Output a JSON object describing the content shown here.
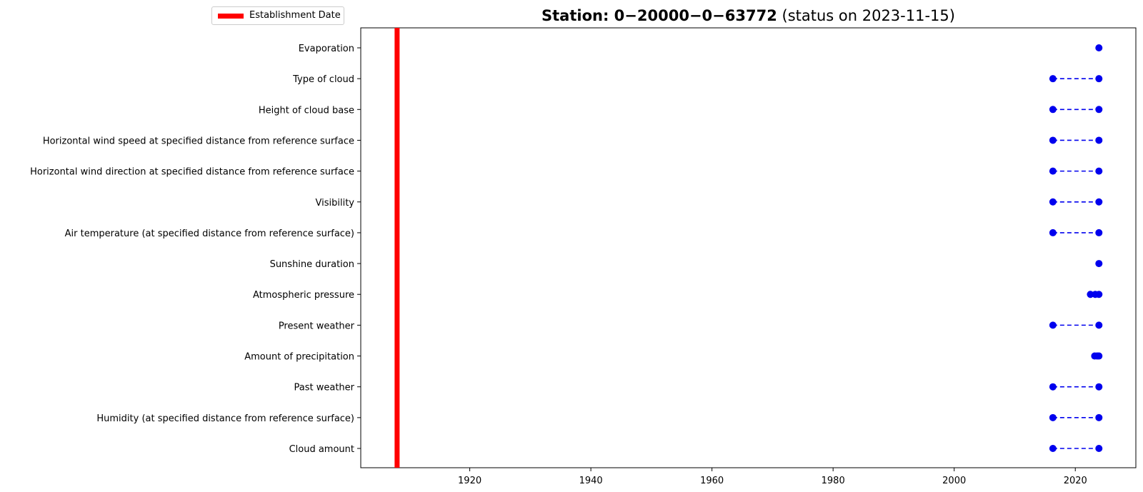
{
  "legend": {
    "label": "Establishment Date",
    "color": "#ff0000"
  },
  "chart_data": {
    "type": "scatter",
    "title": "Station: 0−20000−0−63772",
    "subtitle": "(status on 2023-11-15)",
    "xlabel": "",
    "ylabel": "",
    "xlim": [
      1902,
      2030
    ],
    "xticks": [
      1920,
      1940,
      1960,
      1980,
      2000,
      2020
    ],
    "establishment_year": 1908,
    "line_style": "dashed",
    "marker_color": "#0000ee",
    "categories": [
      "Cloud amount",
      "Humidity  (at specified distance from reference surface)",
      "Past weather",
      "Amount of precipitation",
      "Present weather",
      "Atmospheric pressure",
      "Sunshine duration",
      "Air temperature (at specified distance from reference surface)",
      "Visibility",
      "Horizontal wind direction at specified distance from reference surface",
      "Horizontal wind speed at specified distance from reference surface",
      "Height of cloud base",
      "Type of cloud",
      "Evaporation"
    ],
    "series": [
      {
        "points": [
          2016.3,
          2023.9
        ]
      },
      {
        "points": [
          2016.3,
          2023.9
        ]
      },
      {
        "points": [
          2016.3,
          2023.9
        ]
      },
      {
        "points": [
          2023.2,
          2023.6,
          2023.9
        ]
      },
      {
        "points": [
          2016.3,
          2023.9
        ]
      },
      {
        "points": [
          2022.5,
          2023.3,
          2023.9
        ]
      },
      {
        "points": [
          2023.9
        ]
      },
      {
        "points": [
          2016.3,
          2023.9
        ]
      },
      {
        "points": [
          2016.3,
          2023.9
        ]
      },
      {
        "points": [
          2016.3,
          2023.9
        ]
      },
      {
        "points": [
          2016.3,
          2023.9
        ]
      },
      {
        "points": [
          2016.3,
          2023.9
        ]
      },
      {
        "points": [
          2016.3,
          2023.9
        ]
      },
      {
        "points": [
          2023.9
        ]
      }
    ]
  }
}
